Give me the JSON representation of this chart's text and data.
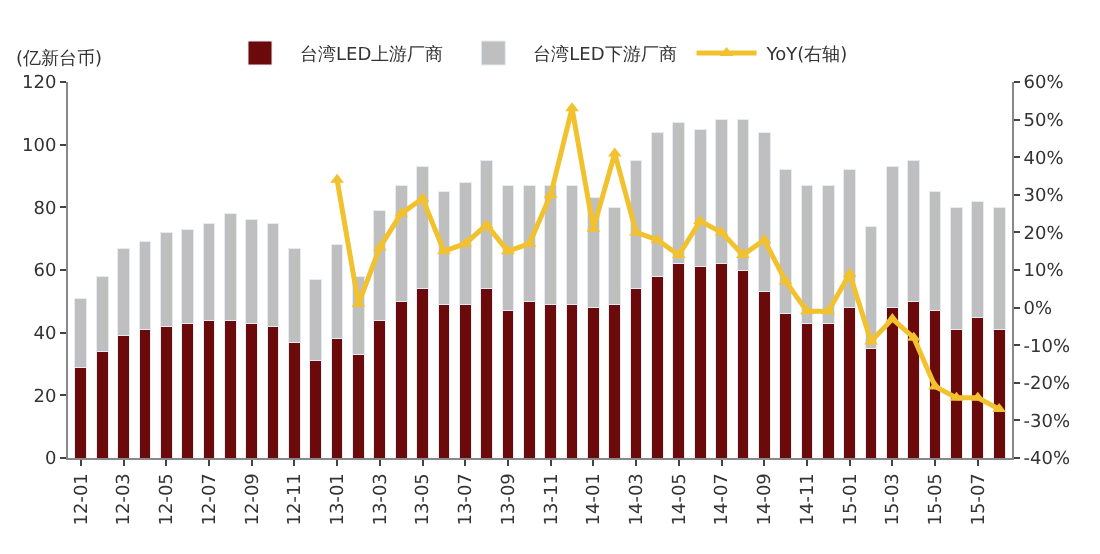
{
  "chart_data": {
    "type": "bar",
    "stacked": true,
    "ylabel": "(亿新台币)",
    "categories": [
      "12-01",
      null,
      "12-03",
      null,
      "12-05",
      null,
      "12-07",
      null,
      "12-09",
      null,
      "12-11",
      null,
      "13-01",
      null,
      "13-03",
      null,
      "13-05",
      null,
      "13-07",
      null,
      "13-09",
      null,
      "13-11",
      null,
      "14-01",
      null,
      "14-03",
      null,
      "14-05",
      null,
      "14-07",
      null,
      "14-09",
      null,
      "14-11",
      null,
      "15-01",
      null,
      "15-03",
      null,
      "15-05",
      null,
      "15-07",
      null
    ],
    "series": [
      {
        "name": "台湾LED上游厂商",
        "color": "#6b0a0a",
        "values": [
          29,
          34,
          39,
          41,
          42,
          43,
          44,
          44,
          43,
          42,
          37,
          31,
          38,
          33,
          44,
          50,
          54,
          49,
          49,
          54,
          47,
          50,
          49,
          49,
          48,
          49,
          54,
          58,
          62,
          61,
          62,
          60,
          53,
          46,
          43,
          43,
          48,
          35,
          48,
          50,
          47,
          41,
          45,
          41
        ]
      },
      {
        "name": "台湾LED下游厂商",
        "color": "#bfbfbf",
        "values": [
          22,
          24,
          28,
          28,
          30,
          30,
          31,
          34,
          33,
          33,
          30,
          26,
          30,
          25,
          35,
          37,
          39,
          36,
          39,
          41,
          40,
          37,
          38,
          38,
          35,
          31,
          41,
          46,
          45,
          44,
          46,
          48,
          51,
          46,
          44,
          44,
          44,
          39,
          45,
          45,
          38,
          39,
          37,
          39
        ]
      },
      {
        "name": "YoY(右轴)",
        "type": "line",
        "axis": "y2",
        "color": "#f2c12e",
        "marker": "triangle",
        "values": [
          null,
          null,
          null,
          null,
          null,
          null,
          null,
          null,
          null,
          null,
          null,
          null,
          34,
          1,
          16,
          25,
          29,
          15,
          17,
          22,
          15,
          17,
          30,
          53,
          21,
          41,
          20,
          18,
          14,
          23,
          20,
          14,
          18,
          7,
          -1,
          -1,
          9,
          -9,
          -3,
          -8,
          -21,
          -24,
          -24,
          -27
        ]
      }
    ],
    "ylim": [
      0,
      120
    ],
    "yticks": [
      0,
      20,
      40,
      60,
      80,
      100,
      120
    ],
    "y2lim": [
      -40,
      60
    ],
    "y2ticks": [
      {
        "value": -40,
        "label": "-40%"
      },
      {
        "value": -30,
        "label": "-30%"
      },
      {
        "value": -20,
        "label": "-20%"
      },
      {
        "value": -10,
        "label": "-10%"
      },
      {
        "value": 0,
        "label": "0%"
      },
      {
        "value": 10,
        "label": "10%"
      },
      {
        "value": 20,
        "label": "20%"
      },
      {
        "value": 30,
        "label": "30%"
      },
      {
        "value": 40,
        "label": "40%"
      },
      {
        "value": 50,
        "label": "50%"
      },
      {
        "value": 60,
        "label": "60%"
      }
    ],
    "legend": "top"
  }
}
